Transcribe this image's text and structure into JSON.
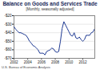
{
  "chart_data": {
    "type": "line",
    "title": "Balance on Goods and Services Trade",
    "subtitle": "[Monthly, seasonally adjusted]",
    "source": "U.S. Bureau of Economic Analysis",
    "x": [
      2002,
      2002.25,
      2002.5,
      2002.75,
      2003,
      2003.25,
      2003.5,
      2003.75,
      2004,
      2004.25,
      2004.5,
      2004.75,
      2005,
      2005.25,
      2005.5,
      2005.75,
      2006,
      2006.25,
      2006.5,
      2006.75,
      2007,
      2007.25,
      2007.5,
      2007.75,
      2008,
      2008.25,
      2008.5,
      2008.75,
      2009,
      2009.25,
      2009.5,
      2009.75,
      2010,
      2010.25,
      2010.5,
      2010.75,
      2011,
      2011.25,
      2011.5,
      2011.75,
      2012,
      2012.25,
      2012.5,
      2012.75,
      2013,
      2013.25,
      2013.5,
      2013.75
    ],
    "series": [
      {
        "name": "Balance",
        "color": "#1f3a93",
        "values": [
          -33,
          -36,
          -38,
          -40,
          -40,
          -41,
          -42,
          -43,
          -46,
          -50,
          -52,
          -55,
          -56,
          -58,
          -60,
          -64,
          -64,
          -64,
          -66,
          -62,
          -61,
          -60,
          -58,
          -59,
          -62,
          -63,
          -62,
          -50,
          -35,
          -27,
          -31,
          -35,
          -39,
          -43,
          -44,
          -40,
          -46,
          -47,
          -45,
          -48,
          -50,
          -48,
          -43,
          -43,
          -43,
          -40,
          -39,
          -35
        ]
      }
    ],
    "xlim": [
      2002,
      2013.75
    ],
    "xticks": [
      2002,
      2004,
      2006,
      2008,
      2010,
      2012
    ],
    "ylim": [
      -70,
      -20
    ],
    "yticks": [
      {
        "value": -70,
        "label": "-$70"
      },
      {
        "value": -60,
        "label": "-$60"
      },
      {
        "value": -50,
        "label": "-$50"
      },
      {
        "value": -40,
        "label": "-$40"
      },
      {
        "value": -30,
        "label": "-$30"
      },
      {
        "value": -20,
        "label": "-$20"
      }
    ],
    "grid": true
  }
}
